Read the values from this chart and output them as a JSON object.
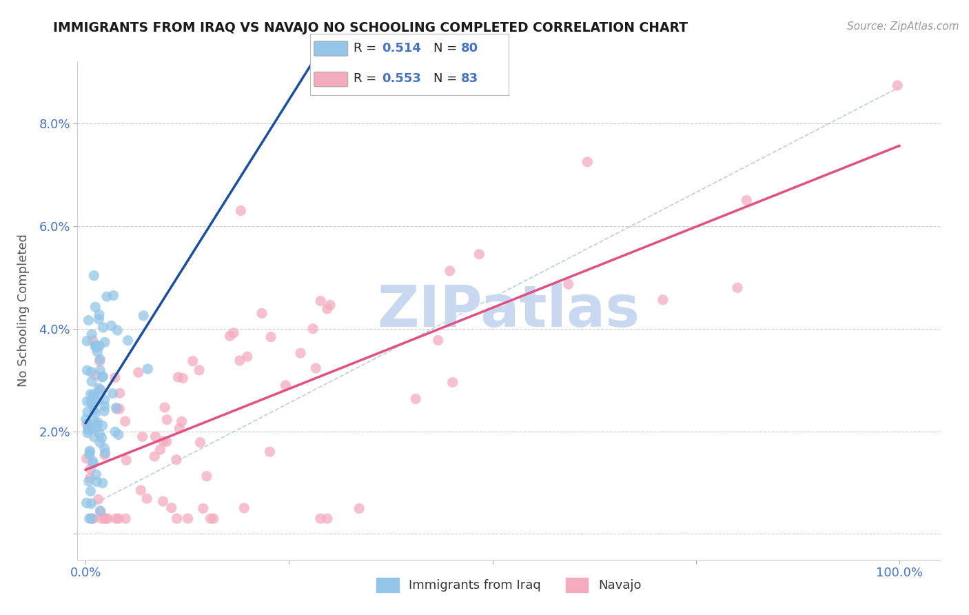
{
  "title": "IMMIGRANTS FROM IRAQ VS NAVAJO NO SCHOOLING COMPLETED CORRELATION CHART",
  "source": "Source: ZipAtlas.com",
  "ylabel": "No Schooling Completed",
  "color_iraq": "#92C5E8",
  "color_navajo": "#F4ABBE",
  "color_trendline_iraq": "#1A4FA0",
  "color_trendline_navajo": "#E05080",
  "color_axis_labels": "#4472C4",
  "color_legend_text": "#4472C4",
  "watermark_color": "#C8D8F0",
  "legend_r1": "0.514",
  "legend_n1": "80",
  "legend_r2": "0.553",
  "legend_n2": "83"
}
